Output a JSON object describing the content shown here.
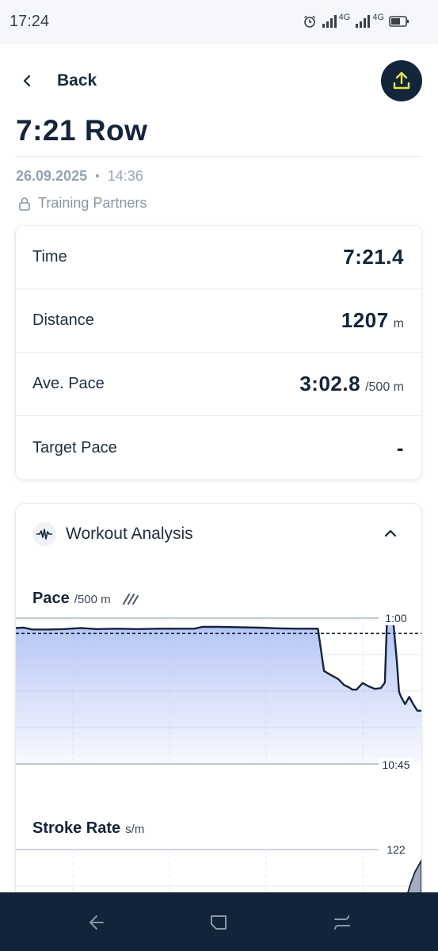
{
  "status_bar": {
    "time": "17:24",
    "network_1": "4G",
    "network_2": "4G"
  },
  "header": {
    "back_label": "Back",
    "upload_icon": "upload-icon"
  },
  "workout": {
    "title": "7:21 Row",
    "date": "26.09.2025",
    "separator": "•",
    "time": "14:36",
    "privacy": "Training Partners"
  },
  "stats": [
    {
      "label": "Time",
      "value": "7:21.4",
      "unit": ""
    },
    {
      "label": "Distance",
      "value": "1207",
      "unit": "m"
    },
    {
      "label": "Ave. Pace",
      "value": "3:02.8",
      "unit": "/500 m"
    },
    {
      "label": "Target Pace",
      "value": "-",
      "unit": ""
    }
  ],
  "analysis": {
    "title": "Workout Analysis",
    "pace_chart": {
      "title": "Pace",
      "unit": "/500 m",
      "top_label": "1:00",
      "bottom_label": "10:45"
    },
    "stroke_chart": {
      "title": "Stroke Rate",
      "unit": "s/m",
      "top_label": "122"
    }
  },
  "colors": {
    "navy": "#14243a",
    "accent_yellow": "#e3e649",
    "fill_blue": "#aebff5"
  },
  "chart_data": [
    {
      "type": "area",
      "title": "Pace",
      "ylabel": "/500 m",
      "y_top_label": "1:00",
      "y_bottom_label": "10:45",
      "x": [
        0,
        0.02,
        0.04,
        0.08,
        0.12,
        0.16,
        0.2,
        0.25,
        0.3,
        0.35,
        0.4,
        0.44,
        0.46,
        0.5,
        0.55,
        0.6,
        0.65,
        0.7,
        0.71,
        0.72,
        0.73,
        0.745,
        0.76,
        0.78,
        0.795,
        0.81,
        0.82,
        0.83,
        0.84,
        0.855,
        0.87,
        0.885,
        0.9,
        0.91,
        0.915,
        0.93,
        0.94,
        0.945,
        0.95,
        0.96,
        0.97,
        0.98,
        0.99,
        1.0
      ],
      "y": [
        0.27,
        0.26,
        0.31,
        0.31,
        0.3,
        0.27,
        0.3,
        0.29,
        0.3,
        0.29,
        0.29,
        0.29,
        0.24,
        0.24,
        0.25,
        0.26,
        0.28,
        0.29,
        0.29,
        0.29,
        0.29,
        0.29,
        1.45,
        1.58,
        1.67,
        1.84,
        1.89,
        1.96,
        1.96,
        1.78,
        1.87,
        1.94,
        1.92,
        1.77,
        0.1,
        0.01,
        1.25,
        2.02,
        2.16,
        2.36,
        2.16,
        2.36,
        2.54,
        2.54
      ],
      "reference_line": 0.42
    },
    {
      "type": "area",
      "title": "Stroke Rate",
      "ylabel": "s/m",
      "y_top_label": "122"
    }
  ]
}
